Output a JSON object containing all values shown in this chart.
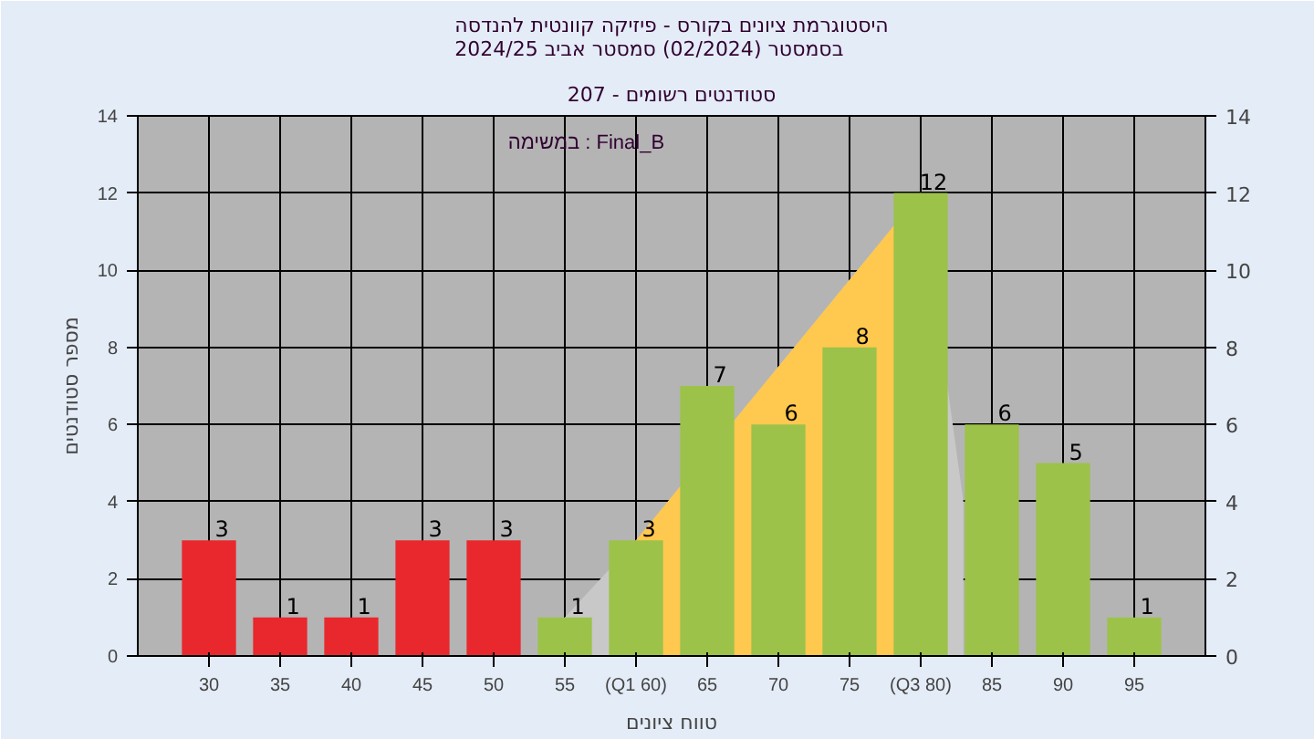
{
  "chart_data": {
    "type": "bar",
    "title": "היסטוגרמת ציונים בקורס - פיזיקה קוונטית להנדסה\nבסמסטר (02/2024) סמסטר אביב 2024/25",
    "subtitle": "סטודנטים רשומים - 207",
    "xlabel": "טווח ציונים",
    "ylabel": "מספר סטודנטים",
    "x": [
      30,
      35,
      40,
      45,
      50,
      55,
      60,
      65,
      70,
      75,
      80,
      85,
      90,
      95
    ],
    "xlim": [
      25,
      100
    ],
    "xticks": [
      30,
      35,
      40,
      45,
      50,
      55,
      {
        "value": 60,
        "label": "(Q1 60)"
      },
      65,
      70,
      75,
      {
        "value": 80,
        "label": "(Q3 80)"
      },
      85,
      90,
      95
    ],
    "ylim": [
      0,
      14
    ],
    "yticks": [
      0,
      2,
      4,
      6,
      8,
      10,
      12,
      14
    ],
    "y2lim": [
      0,
      14
    ],
    "y2ticks": [
      0,
      2,
      4,
      6,
      8,
      10,
      12,
      14
    ],
    "series": [
      {
        "type": "area",
        "color": "#c8c8c8",
        "x": [
          55,
          60,
          80,
          83
        ],
        "values": [
          1,
          3,
          12,
          4
        ]
      },
      {
        "type": "area",
        "color": "#ffc84e",
        "x": [
          60,
          80
        ],
        "values": [
          3,
          12
        ]
      },
      {
        "values": [
          3,
          1,
          1,
          3,
          3,
          1,
          3,
          7,
          6,
          8,
          12,
          6,
          5,
          1
        ],
        "value_labels": [
          "3",
          "1",
          "1",
          "3",
          "3",
          "1",
          "3",
          "7",
          "6",
          "8",
          "12",
          "6",
          "5",
          "1"
        ],
        "colors": [
          "#e8282c",
          "#e8282c",
          "#e8282c",
          "#e8282c",
          "#e8282c",
          "#9cc24a",
          "#9cc24a",
          "#9cc24a",
          "#9cc24a",
          "#9cc24a",
          "#9cc24a",
          "#9cc24a",
          "#9cc24a",
          "#9cc24a"
        ]
      }
    ],
    "annotations": [
      "במשימה : Final_B"
    ],
    "grid": true
  }
}
